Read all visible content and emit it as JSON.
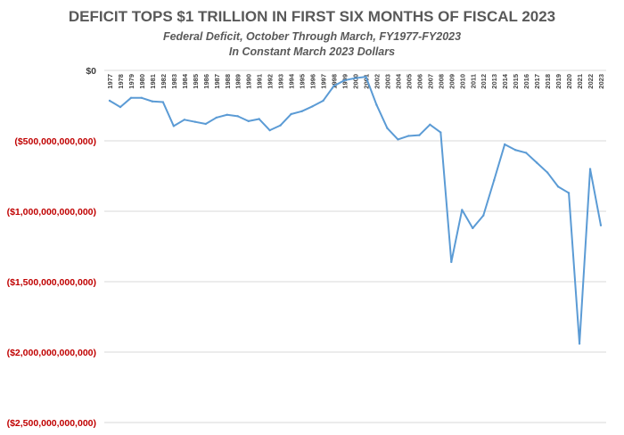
{
  "chart_data": {
    "type": "line",
    "title": "DEFICIT TOPS $1 TRILLION IN FIRST SIX MONTHS OF FISCAL 2023",
    "subtitle_lines": [
      "Federal Deficit, October Through March, FY1977-FY2023",
      "In Constant March 2023 Dollars"
    ],
    "xlabel": "",
    "ylabel": "",
    "ylim": [
      -2500000000000,
      0
    ],
    "yticks": [
      0,
      -500000000000,
      -1000000000000,
      -1500000000000,
      -2000000000000,
      -2500000000000
    ],
    "ytick_labels": [
      "$0",
      "($500,000,000,000)",
      "($1,000,000,000,000)",
      "($1,500,000,000,000)",
      "($2,000,000,000,000)",
      "($2,500,000,000,000)"
    ],
    "zero_label_color": "#404040",
    "negative_label_color": "#c00000",
    "line_color": "#5b9bd5",
    "grid": true,
    "categories": [
      "1977",
      "1978",
      "1979",
      "1980",
      "1981",
      "1982",
      "1983",
      "1984",
      "1985",
      "1986",
      "1987",
      "1988",
      "1989",
      "1990",
      "1991",
      "1992",
      "1993",
      "1994",
      "1995",
      "1996",
      "1997",
      "1998",
      "1999",
      "2000",
      "2001",
      "2002",
      "2003",
      "2004",
      "2005",
      "2006",
      "2007",
      "2008",
      "2009",
      "2010",
      "2011",
      "2012",
      "2013",
      "2014",
      "2015",
      "2016",
      "2017",
      "2018",
      "2019",
      "2020",
      "2021",
      "2022",
      "2023"
    ],
    "series": [
      {
        "values": [
          -215000000000,
          -260000000000,
          -195000000000,
          -195000000000,
          -220000000000,
          -225000000000,
          -395000000000,
          -350000000000,
          -365000000000,
          -380000000000,
          -335000000000,
          -315000000000,
          -325000000000,
          -360000000000,
          -345000000000,
          -425000000000,
          -390000000000,
          -310000000000,
          -290000000000,
          -255000000000,
          -215000000000,
          -110000000000,
          -70000000000,
          -55000000000,
          -45000000000,
          -245000000000,
          -410000000000,
          -490000000000,
          -465000000000,
          -460000000000,
          -385000000000,
          -440000000000,
          -1360000000000,
          -990000000000,
          -1120000000000,
          -1030000000000,
          -780000000000,
          -525000000000,
          -565000000000,
          -585000000000,
          -655000000000,
          -725000000000,
          -825000000000,
          -870000000000,
          -1940000000000,
          -700000000000,
          -1100000000000
        ]
      }
    ]
  }
}
